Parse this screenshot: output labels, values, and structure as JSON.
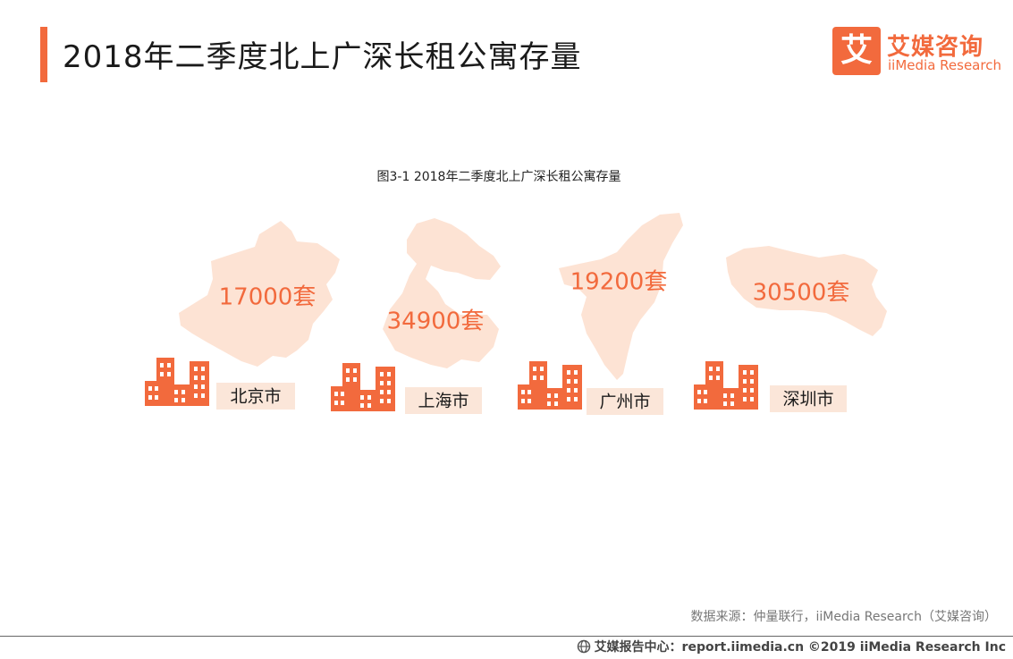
{
  "header": {
    "title": "2018年二季度北上广深长租公寓存量"
  },
  "logo": {
    "glyph": "艾",
    "name_cn": "艾媒咨询",
    "name_en": "iiMedia Research"
  },
  "colors": {
    "accent": "#f26a3d",
    "map_fill": "#fde3d4",
    "label_bg": "#fbe6d9"
  },
  "chart_data": {
    "type": "bar",
    "title": "图3-1 2018年二季度北上广深长租公寓存量",
    "unit": "套",
    "categories": [
      "北京市",
      "上海市",
      "广州市",
      "深圳市"
    ],
    "values": [
      17000,
      34900,
      19200,
      30500
    ],
    "value_labels": [
      "17000套",
      "34900套",
      "19200套",
      "30500套"
    ]
  },
  "source": "数据来源：仲量联行，iiMedia Research（艾媒咨询）",
  "footer": "艾媒报告中心：report.iimedia.cn ©2019  iiMedia Research Inc"
}
